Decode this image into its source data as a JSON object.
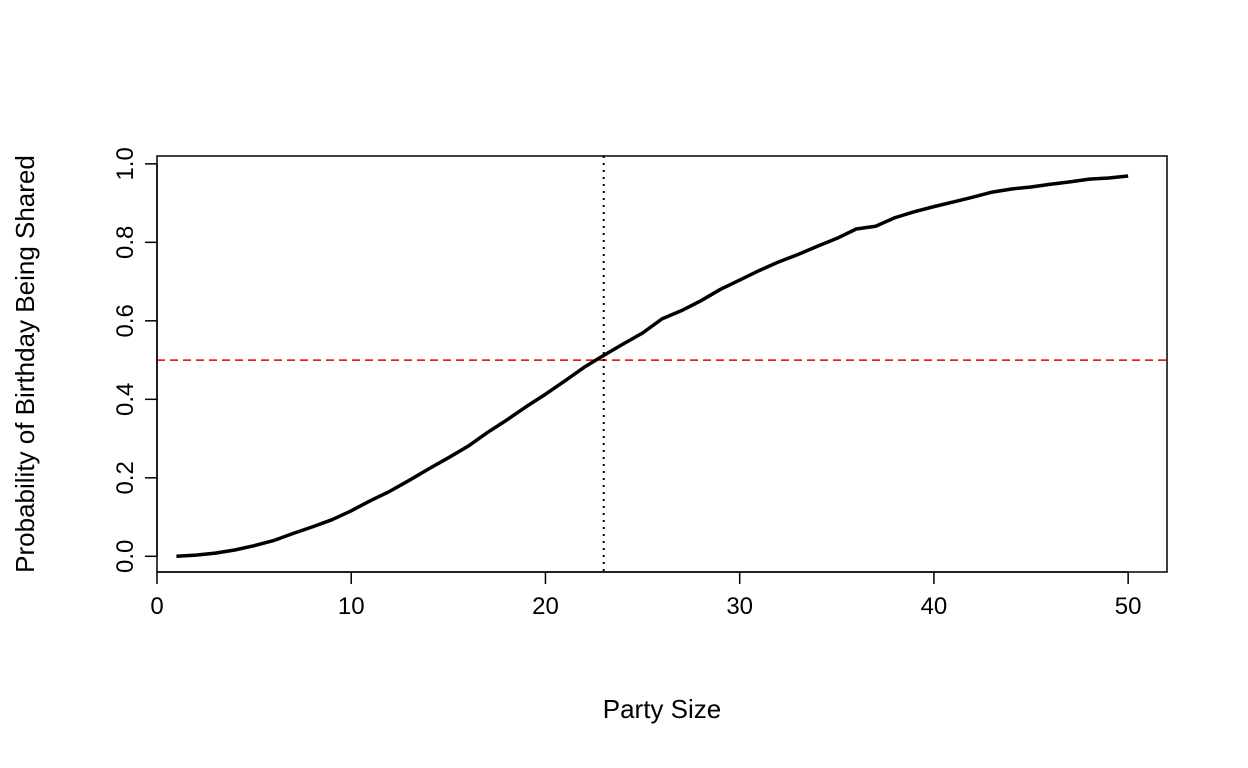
{
  "chart_data": {
    "type": "line",
    "title": "",
    "xlabel": "Party Size",
    "ylabel": "Probability of Birthday Being Shared",
    "xlim": [
      0,
      52
    ],
    "ylim": [
      -0.04,
      1.02
    ],
    "x_ticks": [
      0,
      10,
      20,
      30,
      40,
      50
    ],
    "x_tick_labels": [
      "0",
      "10",
      "20",
      "30",
      "40",
      "50"
    ],
    "y_ticks": [
      0.0,
      0.2,
      0.4,
      0.6,
      0.8,
      1.0
    ],
    "y_tick_labels": [
      "0.0",
      "0.2",
      "0.4",
      "0.6",
      "0.8",
      "1.0"
    ],
    "grid": false,
    "legend": "none",
    "series": [
      {
        "color": "#000000",
        "x": [
          1,
          2,
          3,
          4,
          5,
          6,
          7,
          8,
          9,
          10,
          11,
          12,
          13,
          14,
          15,
          16,
          17,
          18,
          19,
          20,
          21,
          22,
          23,
          24,
          25,
          26,
          27,
          28,
          29,
          30,
          31,
          32,
          33,
          34,
          35,
          36,
          37,
          38,
          39,
          40,
          41,
          42,
          43,
          44,
          45,
          46,
          47,
          48,
          49,
          50
        ],
        "y": [
          0.0,
          0.003,
          0.008,
          0.016,
          0.027,
          0.04,
          0.058,
          0.075,
          0.093,
          0.116,
          0.142,
          0.166,
          0.194,
          0.223,
          0.251,
          0.28,
          0.315,
          0.347,
          0.381,
          0.413,
          0.447,
          0.482,
          0.512,
          0.541,
          0.569,
          0.605,
          0.626,
          0.651,
          0.68,
          0.704,
          0.728,
          0.75,
          0.769,
          0.79,
          0.81,
          0.834,
          0.841,
          0.863,
          0.878,
          0.891,
          0.903,
          0.915,
          0.928,
          0.936,
          0.941,
          0.948,
          0.954,
          0.961,
          0.964,
          0.969
        ]
      }
    ],
    "reference_lines": [
      {
        "orientation": "horizontal",
        "value": 0.5,
        "color": "#dd0000",
        "style": "dashed"
      },
      {
        "orientation": "vertical",
        "value": 23,
        "color": "#000000",
        "style": "dotted"
      }
    ]
  }
}
